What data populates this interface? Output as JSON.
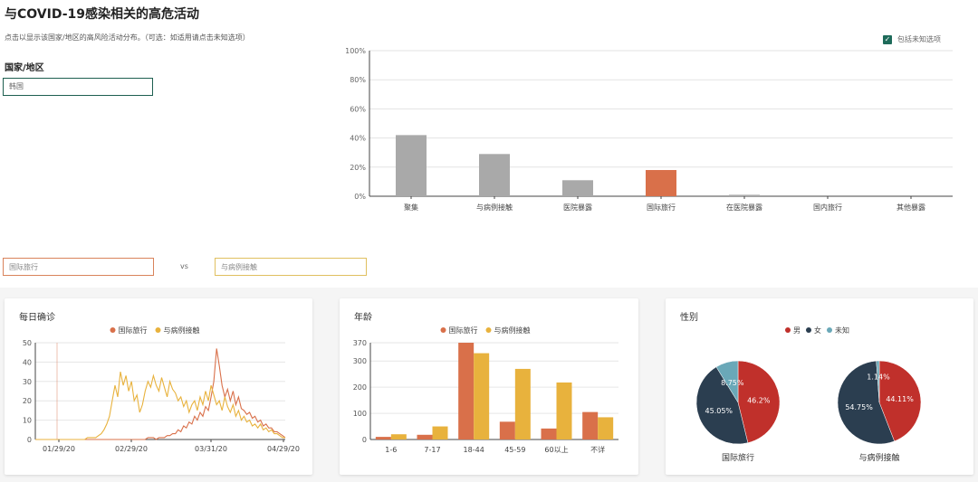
{
  "header": {
    "title": "与COVID-19感染相关的高危活动",
    "description": "点击以显示该国家/地区的高风险活动分布。（可选：如适用请点击未知选项）",
    "country_label": "国家/地区",
    "country_value": "韩国",
    "unknown_label": "包括未知选项"
  },
  "compare": {
    "left_value": "国际旅行",
    "vs_label": "vs",
    "right_value": "与病例接触"
  },
  "colors": {
    "gray": "#a9a9a9",
    "orange": "#d9704a",
    "gold": "#e8b23d",
    "red": "#c0302b",
    "navy": "#2b3e50",
    "teal": "#6aa8b8",
    "green": "#1e6b5a"
  },
  "chart_data": [
    {
      "type": "bar",
      "categories": [
        "聚集",
        "与病例接触",
        "医院暴露",
        "国际旅行",
        "在医院暴露",
        "国内旅行",
        "其他暴露"
      ],
      "values": [
        42,
        29,
        11,
        18,
        1,
        0,
        0
      ],
      "highlight_index": 3,
      "yticks": [
        "0%",
        "20%",
        "40%",
        "60%",
        "80%",
        "100%"
      ],
      "ylim": [
        0,
        100
      ]
    },
    {
      "type": "line",
      "title": "每日确诊",
      "legend": [
        "国际旅行",
        "与病例接触"
      ],
      "xticks": [
        "01/29/20",
        "02/29/20",
        "03/31/20",
        "04/29/20"
      ],
      "yticks": [
        "0",
        "10",
        "20",
        "30",
        "40",
        "50"
      ],
      "ylim": [
        0,
        50
      ],
      "series": [
        {
          "name": "国际旅行",
          "values": [
            0,
            0,
            0,
            0,
            0,
            0,
            0,
            0,
            0,
            0,
            0,
            0,
            0,
            0,
            0,
            0,
            0,
            0,
            0,
            0,
            0,
            0,
            0,
            0,
            0,
            0,
            0,
            0,
            0,
            0,
            0,
            0,
            0,
            0,
            0,
            0,
            0,
            0,
            0,
            0,
            0,
            1,
            1,
            1,
            0,
            1,
            1,
            1,
            2,
            2,
            3,
            3,
            5,
            4,
            7,
            6,
            9,
            8,
            12,
            10,
            14,
            12,
            17,
            15,
            22,
            30,
            47,
            38,
            28,
            22,
            26,
            20,
            25,
            18,
            22,
            16,
            15,
            13,
            14,
            11,
            12,
            9,
            10,
            7,
            8,
            6,
            6,
            4,
            4,
            3,
            2,
            1
          ]
        },
        {
          "name": "与病例接触",
          "values": [
            0,
            0,
            0,
            0,
            0,
            0,
            0,
            0,
            0,
            0,
            0,
            0,
            0,
            0,
            0,
            0,
            0,
            0,
            0,
            1,
            1,
            1,
            1,
            2,
            3,
            5,
            8,
            12,
            20,
            28,
            22,
            35,
            28,
            33,
            25,
            30,
            20,
            23,
            14,
            18,
            25,
            30,
            27,
            33,
            28,
            25,
            32,
            27,
            22,
            30,
            26,
            24,
            20,
            22,
            17,
            20,
            14,
            18,
            20,
            15,
            22,
            18,
            25,
            20,
            28,
            23,
            18,
            20,
            15,
            22,
            17,
            14,
            18,
            12,
            15,
            10,
            12,
            9,
            10,
            7,
            8,
            6,
            8,
            5,
            6,
            4,
            5,
            3,
            3,
            2,
            1,
            1
          ]
        }
      ]
    },
    {
      "type": "bar",
      "title": "年龄",
      "legend": [
        "国际旅行",
        "与病例接触"
      ],
      "categories": [
        "1-6",
        "7-17",
        "18-44",
        "45-59",
        "60以上",
        "不详"
      ],
      "yticks": [
        "0",
        "100",
        "200",
        "300",
        "370"
      ],
      "ylim": [
        0,
        370
      ],
      "series": [
        {
          "name": "国际旅行",
          "values": [
            10,
            18,
            370,
            68,
            42,
            105
          ]
        },
        {
          "name": "与病例接触",
          "values": [
            20,
            50,
            330,
            270,
            218,
            85
          ]
        }
      ]
    },
    {
      "type": "pie",
      "title": "性别",
      "legend": [
        "男",
        "女",
        "未知"
      ],
      "pies": [
        {
          "label": "国际旅行",
          "slices": [
            {
              "name": "男",
              "value": 46.2
            },
            {
              "name": "女",
              "value": 45.05
            },
            {
              "name": "未知",
              "value": 8.75
            }
          ]
        },
        {
          "label": "与病例接触",
          "slices": [
            {
              "name": "男",
              "value": 44.11
            },
            {
              "name": "女",
              "value": 54.75
            },
            {
              "name": "未知",
              "value": 1.14
            }
          ]
        }
      ]
    }
  ],
  "pie_value_labels": [
    [
      "46.2%",
      "45.05%",
      "8.75%"
    ],
    [
      "44.11%",
      "54.75%",
      "1.14%"
    ]
  ]
}
